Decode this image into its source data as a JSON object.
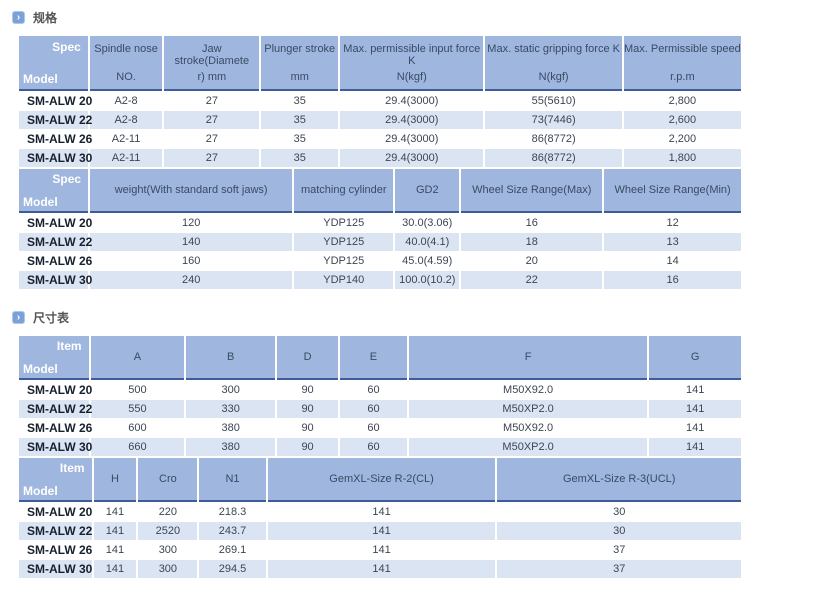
{
  "icons": {
    "section_bullet": "›"
  },
  "theme": {
    "header_bg": "#9fb6df",
    "stripe_bg": "#dbe4f2",
    "header_underline": "#3e5c9a",
    "corner_text": "#ffffff",
    "icon_bg": "#7ba1d9"
  },
  "sections": [
    {
      "id": "spec",
      "title": "规格",
      "tables": [
        {
          "corner": [
            "Spec",
            "Model"
          ],
          "columns": [
            [
              "Spindle nose",
              "NO."
            ],
            [
              "Jaw stroke(Diamete",
              "r) mm"
            ],
            [
              "Plunger stroke",
              "mm"
            ],
            [
              "Max. permissible input force K",
              "N(kgf)"
            ],
            [
              "Max. static gripping force K",
              "N(kgf)"
            ],
            [
              "Max. Permissible speed",
              "r.p.m"
            ]
          ],
          "rows": [
            {
              "model": "SM-ALW 20",
              "cells": [
                "A2-8",
                "27",
                "35",
                "29.4(3000)",
                "55(5610)",
                "2,800"
              ]
            },
            {
              "model": "SM-ALW 22",
              "cells": [
                "A2-8",
                "27",
                "35",
                "29.4(3000)",
                "73(7446)",
                "2,600"
              ]
            },
            {
              "model": "SM-ALW 26",
              "cells": [
                "A2-11",
                "27",
                "35",
                "29.4(3000)",
                "86(8772)",
                "2,200"
              ]
            },
            {
              "model": "SM-ALW 30",
              "cells": [
                "A2-11",
                "27",
                "35",
                "29.4(3000)",
                "86(8772)",
                "1,800"
              ]
            }
          ]
        },
        {
          "corner": [
            "Spec",
            "Model"
          ],
          "columns": [
            [
              "weight(With standard soft jaws)"
            ],
            [
              "matching cylinder"
            ],
            [
              "GD2"
            ],
            [
              "Wheel Size Range(Max)"
            ],
            [
              "Wheel Size Range(Min)"
            ]
          ],
          "rows": [
            {
              "model": "SM-ALW 20",
              "cells": [
                "120",
                "YDP125",
                "30.0(3.06)",
                "16",
                "12"
              ]
            },
            {
              "model": "SM-ALW 22",
              "cells": [
                "140",
                "YDP125",
                "40.0(4.1)",
                "18",
                "13"
              ]
            },
            {
              "model": "SM-ALW 26",
              "cells": [
                "160",
                "YDP125",
                "45.0(4.59)",
                "20",
                "14"
              ]
            },
            {
              "model": "SM-ALW 30",
              "cells": [
                "240",
                "YDP140",
                "100.0(10.2)",
                "22",
                "16"
              ]
            }
          ]
        }
      ]
    },
    {
      "id": "dimensions",
      "title": "尺寸表",
      "tables": [
        {
          "corner": [
            "Item",
            "Model"
          ],
          "columns": [
            [
              "A"
            ],
            [
              "B"
            ],
            [
              "D"
            ],
            [
              "E"
            ],
            [
              "F"
            ],
            [
              "G"
            ]
          ],
          "rows": [
            {
              "model": "SM-ALW 20",
              "cells": [
                "500",
                "300",
                "90",
                "60",
                "M50X92.0",
                "141"
              ]
            },
            {
              "model": "SM-ALW 22",
              "cells": [
                "550",
                "330",
                "90",
                "60",
                "M50XP2.0",
                "141"
              ]
            },
            {
              "model": "SM-ALW 26",
              "cells": [
                "600",
                "380",
                "90",
                "60",
                "M50X92.0",
                "141"
              ]
            },
            {
              "model": "SM-ALW 30",
              "cells": [
                "660",
                "380",
                "90",
                "60",
                "M50XP2.0",
                "141"
              ]
            }
          ]
        },
        {
          "corner": [
            "Item",
            "Model"
          ],
          "columns": [
            [
              "H"
            ],
            [
              "Cro"
            ],
            [
              "N1"
            ],
            [
              "GemXL-Size R-2(CL)"
            ],
            [
              "GemXL-Size R-3(UCL)"
            ]
          ],
          "rows": [
            {
              "model": "SM-ALW 20",
              "cells": [
                "141",
                "220",
                "218.3",
                "141",
                "30"
              ]
            },
            {
              "model": "SM-ALW 22",
              "cells": [
                "141",
                "2520",
                "243.7",
                "141",
                "30"
              ]
            },
            {
              "model": "SM-ALW 26",
              "cells": [
                "141",
                "300",
                "269.1",
                "141",
                "37"
              ]
            },
            {
              "model": "SM-ALW 30",
              "cells": [
                "141",
                "300",
                "294.5",
                "141",
                "37"
              ]
            }
          ]
        }
      ]
    }
  ]
}
